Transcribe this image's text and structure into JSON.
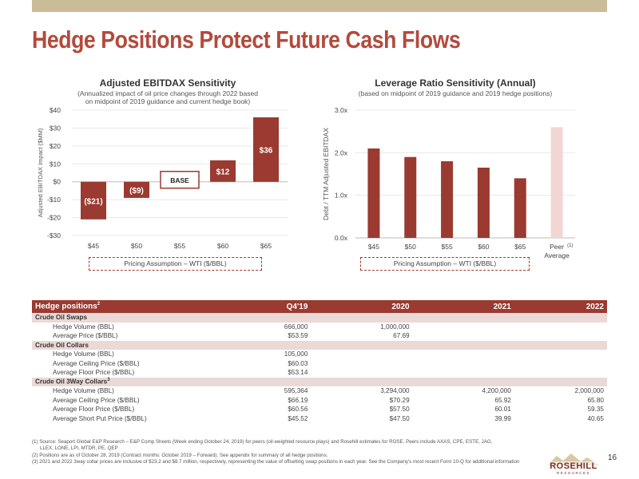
{
  "page": {
    "title": "Hedge Positions Protect Future Cash Flows",
    "page_number": "16",
    "logo_text": "ROSEHILL",
    "logo_sub": "RESOURCES"
  },
  "chart_data": [
    {
      "type": "bar",
      "title": "Adjusted EBITDAX Sensitivity",
      "subtitle_lines": [
        "(Annualized impact of oil price changes through 2022 based",
        "on midpoint of 2019 guidance and current hedge book)"
      ],
      "ylabel": "Adjusted EBITDAX Impact ($MM)",
      "xlabel_box": "Pricing Assumption – WTI ($/BBL)",
      "categories": [
        "$45",
        "$50",
        "$55",
        "$60",
        "$65"
      ],
      "values": [
        -21,
        -9,
        0,
        12,
        36
      ],
      "data_labels": [
        "($21)",
        "($9)",
        "BASE",
        "$12",
        "$36"
      ],
      "ylim": [
        -30,
        40
      ],
      "yticks": [
        -30,
        -20,
        -10,
        0,
        10,
        20,
        30,
        40
      ],
      "ytick_labels": [
        "-$30",
        "-$20",
        "-$10",
        "$0",
        "$10",
        "$20",
        "$30",
        "$40"
      ],
      "bar_color": "#9a3a30"
    },
    {
      "type": "bar",
      "title": "Leverage Ratio Sensitivity (Annual)",
      "subtitle_lines": [
        "(based on midpoint of 2019 guidance and 2019 hedge positions)"
      ],
      "ylabel": "Debt / TTM Adjusted EBITDAX",
      "xlabel_box": "Pricing Assumption – WTI ($/BBL)",
      "categories": [
        "$45",
        "$50",
        "$55",
        "$60",
        "$65",
        "Peer"
      ],
      "category_notes": [
        "",
        "",
        "",
        "",
        "",
        "(1)"
      ],
      "category_sub": [
        "",
        "",
        "",
        "",
        "",
        "Average"
      ],
      "values": [
        2.1,
        1.9,
        1.8,
        1.65,
        1.4,
        2.6
      ],
      "ylim": [
        0,
        3
      ],
      "yticks": [
        0,
        1,
        2,
        3
      ],
      "ytick_labels": [
        "0.0x",
        "1.0x",
        "2.0x",
        "3.0x"
      ],
      "bar_color": "#9a3a30",
      "peer_color": "#f2d6d4"
    }
  ],
  "table": {
    "headers": [
      "Hedge positions",
      "Q4'19",
      "2020",
      "2021",
      "2022"
    ],
    "header_sup": "2",
    "sections": [
      {
        "title": "Crude Oil Swaps",
        "title_sup": "",
        "rows": [
          {
            "label": "Hedge Volume (BBL)",
            "q4": "666,000",
            "y2020": "1,000,000",
            "y2021": "",
            "y2022": ""
          },
          {
            "label": "Average Price ($/BBL)",
            "q4": "$53.59",
            "y2020": "67.69",
            "y2021": "",
            "y2022": ""
          }
        ]
      },
      {
        "title": "Crude Oil Collars",
        "title_sup": "",
        "rows": [
          {
            "label": "Hedge Volume (BBL)",
            "q4": "105,000",
            "y2020": "",
            "y2021": "",
            "y2022": ""
          },
          {
            "label": "Average Ceiling Price ($/BBL)",
            "q4": "$60.03",
            "y2020": "",
            "y2021": "",
            "y2022": ""
          },
          {
            "label": "Average Floor Price ($/BBL)",
            "q4": "$53.14",
            "y2020": "",
            "y2021": "",
            "y2022": ""
          }
        ]
      },
      {
        "title": "Crude Oil 3Way Collars",
        "title_sup": "3",
        "rows": [
          {
            "label": "Hedge Volume (BBL)",
            "q4": "595,364",
            "y2020": "3,294,000",
            "y2021": "4,200,000",
            "y2022": "2,000,000"
          },
          {
            "label": "Average Ceiling Price ($/BBL)",
            "q4": "$66.19",
            "y2020": "$70.29",
            "y2021": "65.92",
            "y2022": "65.80"
          },
          {
            "label": "Average Floor Price ($/BBL)",
            "q4": "$60.56",
            "y2020": "$57.50",
            "y2021": "60.01",
            "y2022": "59.35"
          },
          {
            "label": "Average Short Put Price ($/BBL)",
            "q4": "$45.52",
            "y2020": "$47.50",
            "y2021": "39.99",
            "y2022": "40.65"
          }
        ]
      }
    ]
  },
  "footnotes": [
    "(1) Source: Seaport Global E&P Research – E&P Comp Sheets (Week ending October 24, 2019) for peers (oil-weighted resource plays) and Rosehill estimates for ROSE. Peers include AXAS, CPE, ESTE, JAG,",
    "LLEX, LONE, LPI, MTDR, PE, QEP",
    "(2) Positions are as of October 28, 2019 (Contract months: October 2019 – Forward). See appendix for summary of all hedge positions.",
    "(3) 2021 and 2022 3way collar prices are inclusive of $23.2 and $8.7 million, respectively, representing the value of offsetting swap positions in each year.  See the Company's most recent Form 10-Q for additional information"
  ]
}
